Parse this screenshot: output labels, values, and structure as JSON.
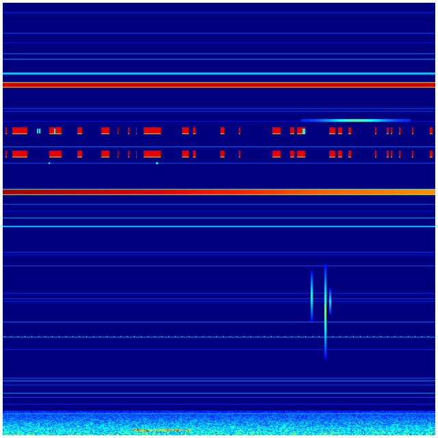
{
  "view": {
    "type": "spectrogram",
    "colormap": "jet",
    "colors": {
      "background": "#00007f",
      "low": "#0000ff",
      "mid_low": "#0080ff",
      "mid": "#00ffff",
      "mid_high": "#ffff00",
      "high": "#ff0000",
      "max": "#800000"
    },
    "axes_visible": false,
    "labels_visible": false
  }
}
